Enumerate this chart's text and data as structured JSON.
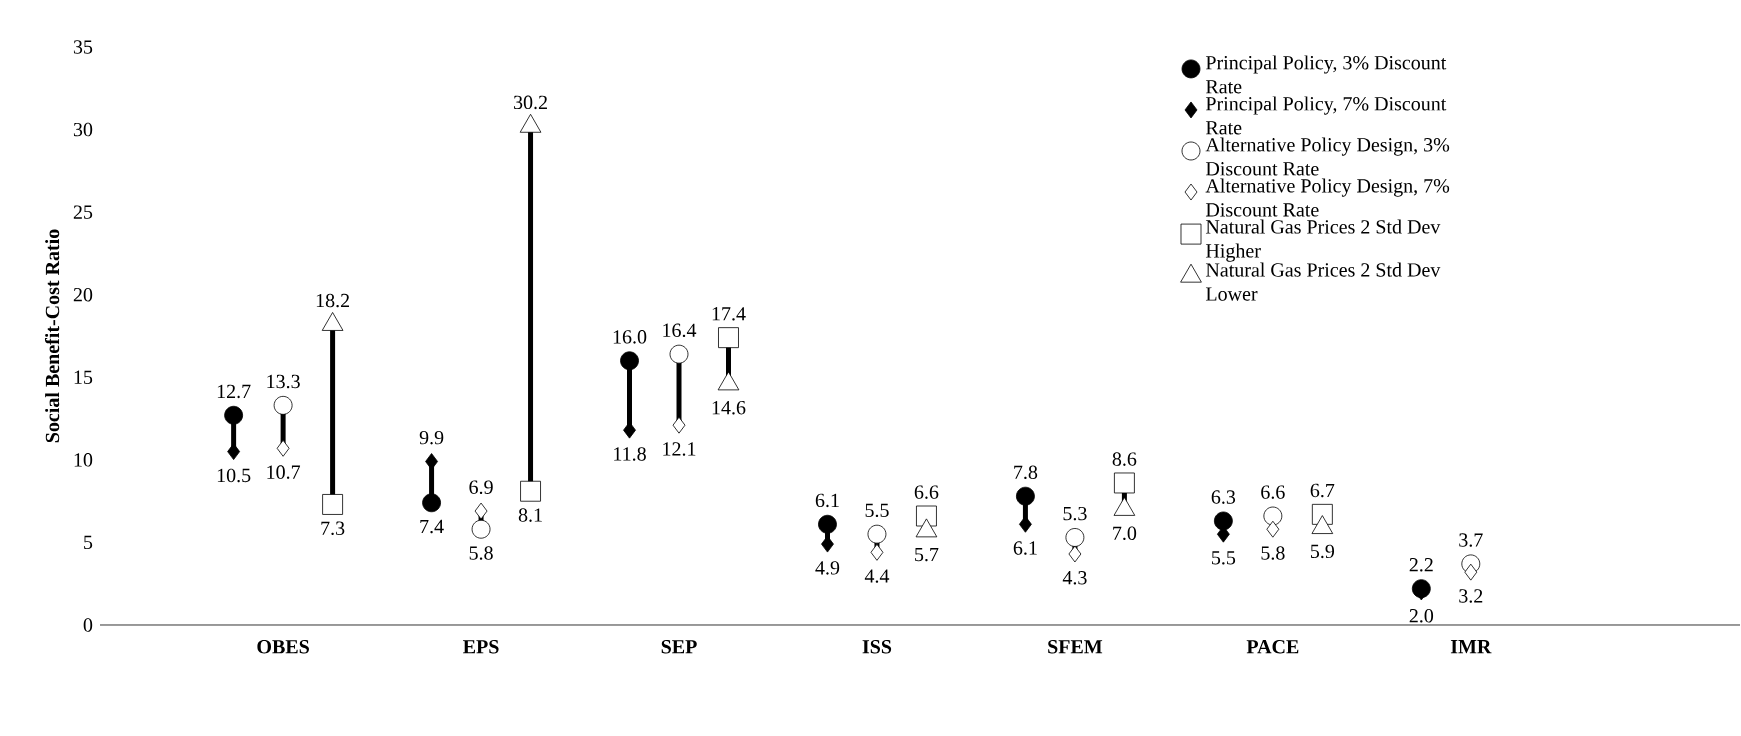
{
  "chart_data": {
    "type": "scatter",
    "ylabel": "Social Benefit-Cost Ratio",
    "categories": [
      "OBES",
      "EPS",
      "SEP",
      "ISS",
      "SFEM",
      "PACE",
      "IMR"
    ],
    "ylim": [
      0,
      35
    ],
    "yticks": [
      0,
      5,
      10,
      15,
      20,
      25,
      30,
      35
    ],
    "grid": false,
    "legend": "top right",
    "series": [
      {
        "name": "Principal Policy, 3% Discount Rate",
        "color": "#000000",
        "marker": "circle",
        "values": [
          12.7,
          7.4,
          16.0,
          6.1,
          7.8,
          6.3,
          2.2
        ],
        "value_labels": [
          "12.7",
          "7.4",
          "16.0",
          "6.1",
          "7.8",
          "6.3",
          "2.2"
        ]
      },
      {
        "name": "Principal Policy, 7% Discount Rate",
        "color": "#000000",
        "marker": "diamond",
        "values": [
          10.5,
          9.9,
          11.8,
          4.9,
          6.1,
          5.5,
          2.0
        ],
        "value_labels": [
          "10.5",
          "9.9",
          "11.8",
          "4.9",
          "6.1",
          "5.5",
          "2.0"
        ]
      },
      {
        "name": "Alternative Policy Design, 3% Discount Rate",
        "color": "#ffffff",
        "marker": "circle",
        "values": [
          13.3,
          5.8,
          16.4,
          5.5,
          5.3,
          6.6,
          3.7
        ],
        "value_labels": [
          "13.3",
          "5.8",
          "16.4",
          "5.5",
          "5.3",
          "6.6",
          "3.7"
        ]
      },
      {
        "name": "Alternative Policy Design, 7% Discount Rate",
        "color": "#ffffff",
        "marker": "diamond",
        "values": [
          10.7,
          6.9,
          12.1,
          4.4,
          4.3,
          5.8,
          3.2
        ],
        "value_labels": [
          "10.7",
          "6.9",
          "12.1",
          "4.4",
          "4.3",
          "5.8",
          "3.2"
        ]
      },
      {
        "name": "Natural Gas Prices 2 Std Dev Higher",
        "color": "#ffffff",
        "marker": "square",
        "values": [
          7.3,
          8.1,
          17.4,
          6.6,
          8.6,
          6.7,
          null
        ],
        "value_labels": [
          "7.3",
          "8.1",
          "17.4",
          "6.6",
          "8.6",
          "6.7",
          null
        ]
      },
      {
        "name": "Natural Gas Prices 2 Std Dev Lower",
        "color": "#ffffff",
        "marker": "triangle",
        "values": [
          18.2,
          30.2,
          14.6,
          5.7,
          7.0,
          5.9,
          null
        ],
        "value_labels": [
          "18.2",
          "30.2",
          "14.6",
          "5.7",
          "7.0",
          "5.9",
          null
        ]
      }
    ]
  }
}
